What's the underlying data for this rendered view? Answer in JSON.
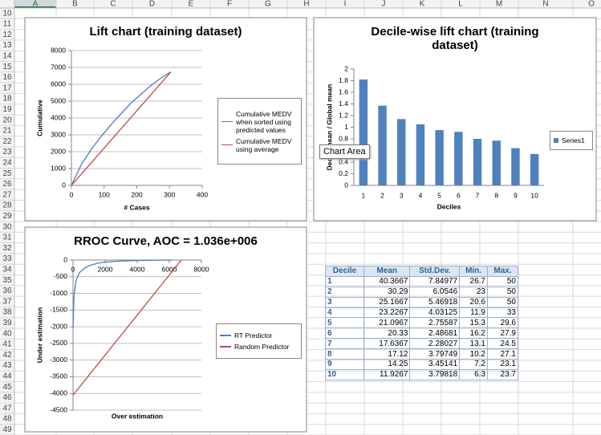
{
  "spreadsheet": {
    "columns": [
      "A",
      "B",
      "C",
      "D",
      "E",
      "F",
      "G",
      "H",
      "I",
      "J",
      "K",
      "L",
      "M",
      "N",
      "O"
    ],
    "rows": [
      10,
      11,
      12,
      13,
      14,
      15,
      16,
      17,
      18,
      19,
      20,
      21,
      22,
      23,
      24,
      25,
      26,
      27,
      28,
      29,
      30,
      31,
      32,
      33,
      34,
      35,
      36,
      37,
      38,
      39,
      40,
      41,
      42,
      43,
      44,
      45,
      46,
      47,
      48,
      49
    ]
  },
  "chart_data": [
    {
      "type": "line",
      "title": "Lift chart (training dataset)",
      "xlabel": "# Cases",
      "ylabel": "Cumulative",
      "x": [
        0,
        30,
        61,
        91,
        122,
        152,
        182,
        213,
        243,
        274,
        304
      ],
      "xlim": [
        0,
        400
      ],
      "xticks": [
        0,
        100,
        200,
        300,
        400
      ],
      "ylim": [
        0,
        8000
      ],
      "yticks": [
        0,
        1000,
        2000,
        3000,
        4000,
        5000,
        6000,
        7000,
        8000
      ],
      "grid": true,
      "legend": "right",
      "series": [
        {
          "name": "Cumulative MEDV when sorted using predicted values",
          "color": "#4a7ebb",
          "values": [
            0,
            1230,
            2150,
            2910,
            3620,
            4260,
            4880,
            5410,
            5930,
            6370,
            6730
          ]
        },
        {
          "name": "Cumulative MEDV using average",
          "color": "#be4b48",
          "values": [
            0,
            664,
            1350,
            2015,
            2701,
            3365,
            4029,
            4715,
            5380,
            6066,
            6730
          ]
        }
      ]
    },
    {
      "type": "bar",
      "title": "Decile-wise lift chart (training dataset)",
      "xlabel": "Deciles",
      "ylabel": "Decile mean / Global mean",
      "categories": [
        1,
        2,
        3,
        4,
        5,
        6,
        7,
        8,
        9,
        10
      ],
      "ylim": [
        0,
        2
      ],
      "yticks": [
        0,
        0.2,
        0.4,
        0.6,
        0.8,
        1,
        1.2,
        1.4,
        1.6,
        1.8,
        2
      ],
      "grid": false,
      "legend": "right",
      "series": [
        {
          "name": "Series1",
          "color": "#4f81bd",
          "values": [
            1.82,
            1.37,
            1.14,
            1.05,
            0.95,
            0.92,
            0.8,
            0.77,
            0.64,
            0.54
          ]
        }
      ]
    },
    {
      "type": "line",
      "title": "RROC Curve, AOC = 1.036e+006",
      "xlabel": "Over estimation",
      "ylabel": "Under estimation",
      "xlim": [
        0,
        8000
      ],
      "xticks": [
        0,
        2000,
        4000,
        6000,
        8000
      ],
      "ylim": [
        -4500,
        0
      ],
      "yticks": [
        0,
        -500,
        -1000,
        -1500,
        -2000,
        -2500,
        -3000,
        -3500,
        -4000,
        -4500
      ],
      "grid": true,
      "legend": "right",
      "series": [
        {
          "name": "RT Predictor",
          "color": "#4a7ebb",
          "x": [
            0,
            50,
            100,
            200,
            400,
            700,
            1000,
            1500,
            2000,
            3000,
            4000,
            5000,
            6200
          ],
          "values": [
            -2050,
            -1200,
            -900,
            -600,
            -380,
            -250,
            -170,
            -100,
            -60,
            -30,
            -15,
            -5,
            0
          ]
        },
        {
          "name": "Random Predictor",
          "color": "#be4b48",
          "x": [
            0,
            6750
          ],
          "values": [
            -4050,
            0
          ]
        }
      ]
    }
  ],
  "table": {
    "header": [
      "Decile",
      "Mean",
      "Std.Dev.",
      "Min.",
      "Max."
    ],
    "rows": [
      [
        1,
        40.3667,
        7.84977,
        26.7,
        50
      ],
      [
        2,
        30.29,
        6.0546,
        23,
        50
      ],
      [
        3,
        25.1667,
        5.46918,
        20.6,
        50
      ],
      [
        4,
        23.2267,
        4.03125,
        11.9,
        33
      ],
      [
        5,
        21.0967,
        2.75587,
        15.3,
        29.6
      ],
      [
        6,
        20.33,
        2.48681,
        16.2,
        27.9
      ],
      [
        7,
        17.6367,
        2.28027,
        13.1,
        24.5
      ],
      [
        8,
        17.12,
        3.79749,
        10.2,
        27.1
      ],
      [
        9,
        14.25,
        3.45141,
        7.2,
        23.1
      ],
      [
        10,
        11.9267,
        3.79818,
        6.3,
        23.7
      ]
    ]
  },
  "tooltip": "Chart Area"
}
